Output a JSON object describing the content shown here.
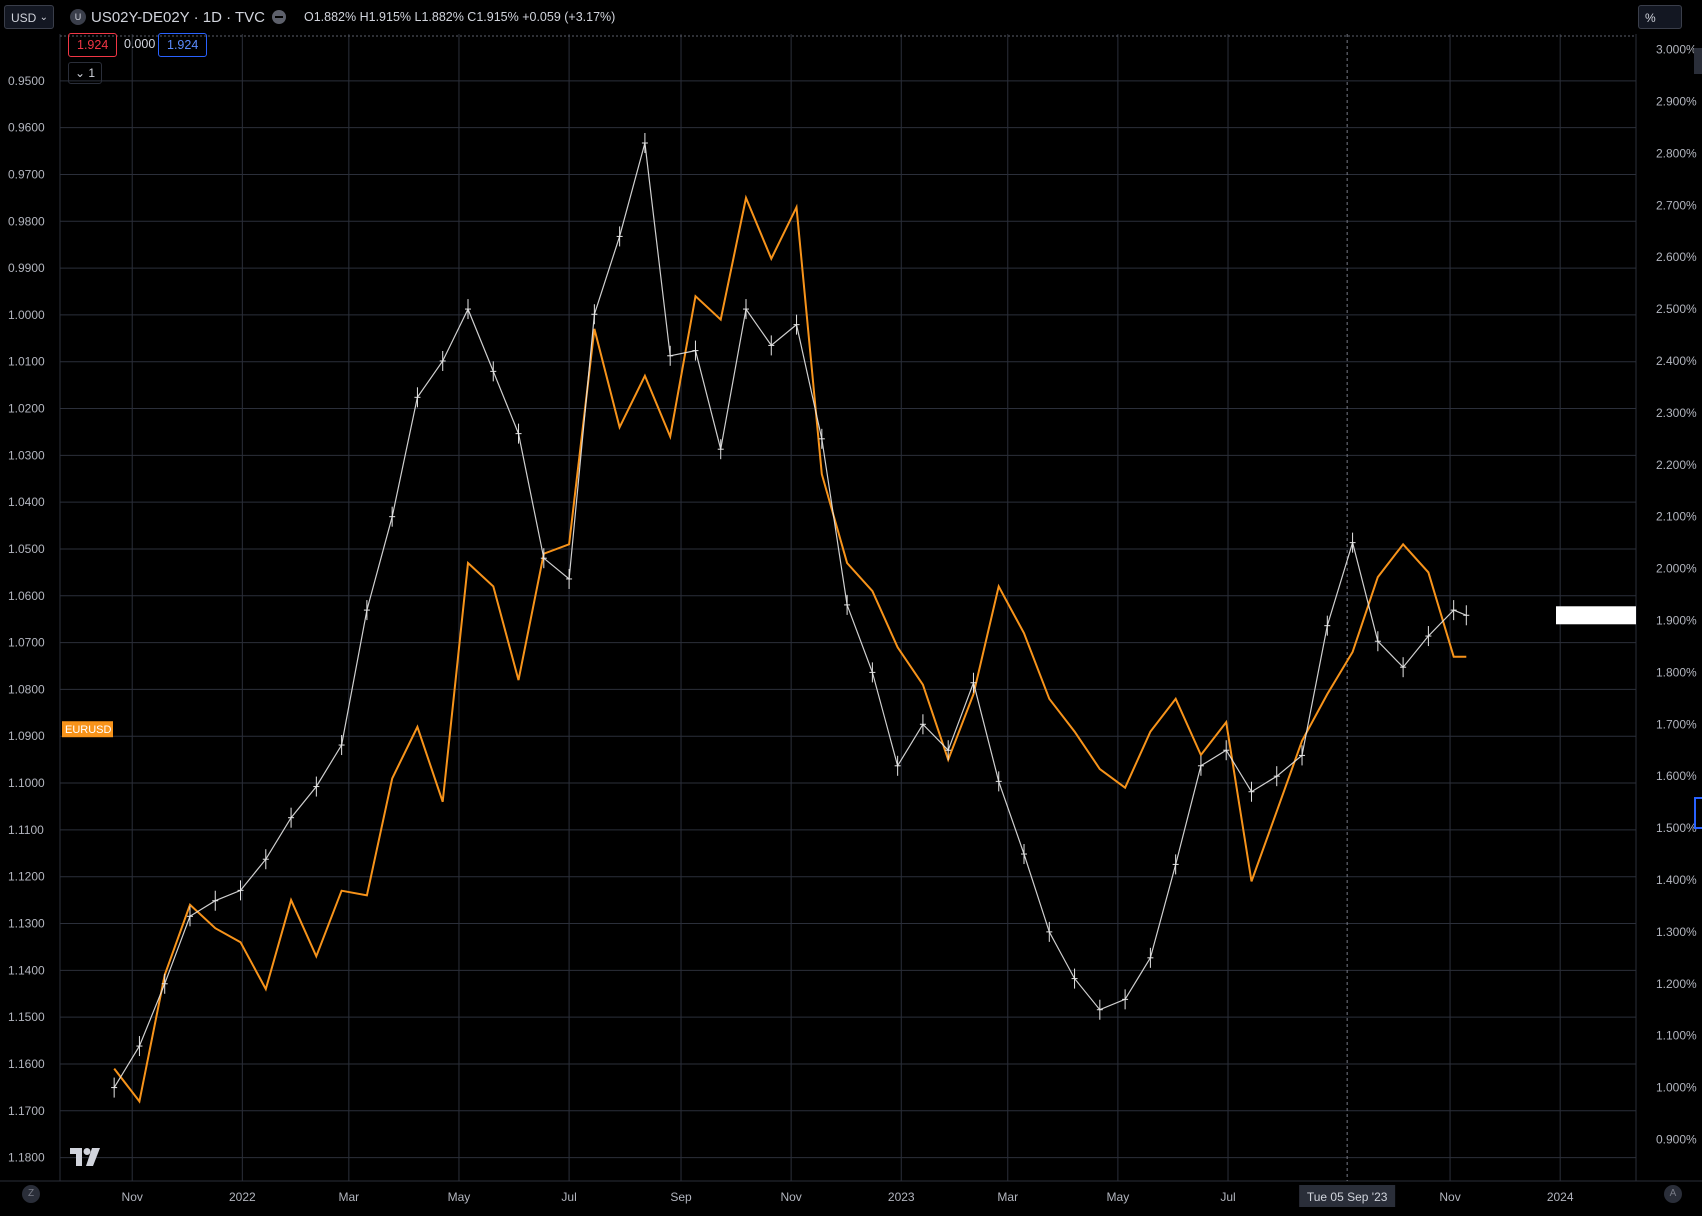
{
  "header": {
    "currency": "USD",
    "scale_unit": "%",
    "symbol_icon": "U",
    "symbol_title": "US02Y-DE02Y · 1D · TVC",
    "ohlc": "O1.882% H1.915% L1.882% C1.915% +0.059 (+3.17%)",
    "value_red": "1.924",
    "value_zero": "0.000",
    "value_blue": "1.924",
    "collapse_label": "1",
    "collapse_icon": "chevron-down-icon"
  },
  "footer": {
    "left_btn": "Z",
    "right_btn": "A",
    "logo": "tradingview-logo"
  },
  "colors": {
    "background": "#000000",
    "grid": "#2b2f3a",
    "eurusd": "#f7931a",
    "spread_bars": "#e6e6e6",
    "crosshair_label_bg": "#2a2e39"
  },
  "chart_data": {
    "type": "line",
    "x_ticks": [
      "Nov",
      "2022",
      "Mar",
      "May",
      "Jul",
      "Sep",
      "Nov",
      "2023",
      "Mar",
      "May",
      "Jul",
      "Tue 05 Sep '23",
      "Nov",
      "2024"
    ],
    "x_range": [
      "2021-10",
      "2024-02"
    ],
    "left_axis": {
      "inverted": true,
      "ticks": [
        "0.9500",
        "0.9600",
        "0.9700",
        "0.9800",
        "0.9900",
        "1.0000",
        "1.0100",
        "1.0200",
        "1.0300",
        "1.0400",
        "1.0500",
        "1.0600",
        "1.0700",
        "1.0800",
        "1.0900",
        "1.1000",
        "1.1100",
        "1.1200",
        "1.1300",
        "1.1400",
        "1.1500",
        "1.1600",
        "1.1700",
        "1.1800"
      ],
      "range": [
        0.94,
        1.185
      ]
    },
    "right_axis": {
      "ticks": [
        "3.000%",
        "2.900%",
        "2.800%",
        "2.700%",
        "2.600%",
        "2.500%",
        "2.400%",
        "2.300%",
        "2.200%",
        "2.100%",
        "2.000%",
        "1.900%",
        "1.800%",
        "1.700%",
        "1.600%",
        "1.500%",
        "1.400%",
        "1.300%",
        "1.200%",
        "1.100%",
        "1.000%",
        "0.900%"
      ],
      "range": [
        0.82,
        3.03
      ]
    },
    "crosshair_date": "Tue 05 Sep '23",
    "series": [
      {
        "name": "EURUSD",
        "axis": "left",
        "style": "line",
        "x": [
          "2021-10-22",
          "2021-11-05",
          "2021-11-19",
          "2021-12-03",
          "2021-12-17",
          "2021-12-31",
          "2022-01-14",
          "2022-01-28",
          "2022-02-11",
          "2022-02-25",
          "2022-03-11",
          "2022-03-25",
          "2022-04-08",
          "2022-04-22",
          "2022-05-06",
          "2022-05-20",
          "2022-06-03",
          "2022-06-17",
          "2022-07-01",
          "2022-07-15",
          "2022-07-29",
          "2022-08-12",
          "2022-08-26",
          "2022-09-09",
          "2022-09-23",
          "2022-10-07",
          "2022-10-21",
          "2022-11-04",
          "2022-11-18",
          "2022-12-02",
          "2022-12-16",
          "2022-12-30",
          "2023-01-13",
          "2023-01-27",
          "2023-02-10",
          "2023-02-24",
          "2023-03-10",
          "2023-03-24",
          "2023-04-07",
          "2023-04-21",
          "2023-05-05",
          "2023-05-19",
          "2023-06-02",
          "2023-06-16",
          "2023-06-30",
          "2023-07-14",
          "2023-07-28",
          "2023-08-11",
          "2023-08-25",
          "2023-09-08",
          "2023-09-22",
          "2023-10-06",
          "2023-10-20",
          "2023-11-03",
          "2023-11-10"
        ],
        "values": [
          1.161,
          1.168,
          1.141,
          1.126,
          1.131,
          1.134,
          1.144,
          1.125,
          1.137,
          1.123,
          1.124,
          1.099,
          1.088,
          1.104,
          1.053,
          1.058,
          1.078,
          1.051,
          1.049,
          1.003,
          1.024,
          1.013,
          1.026,
          0.996,
          1.001,
          0.975,
          0.988,
          0.977,
          1.034,
          1.053,
          1.059,
          1.071,
          1.079,
          1.095,
          1.081,
          1.058,
          1.068,
          1.082,
          1.089,
          1.097,
          1.101,
          1.089,
          1.082,
          1.094,
          1.087,
          1.121,
          1.106,
          1.091,
          1.081,
          1.072,
          1.056,
          1.049,
          1.055,
          1.073,
          1.073
        ]
      },
      {
        "name": "US02Y-DE02Y",
        "axis": "right",
        "style": "bars",
        "x": [
          "2021-10-22",
          "2021-11-05",
          "2021-11-19",
          "2021-12-03",
          "2021-12-17",
          "2021-12-31",
          "2022-01-14",
          "2022-01-28",
          "2022-02-11",
          "2022-02-25",
          "2022-03-11",
          "2022-03-25",
          "2022-04-08",
          "2022-04-22",
          "2022-05-06",
          "2022-05-20",
          "2022-06-03",
          "2022-06-17",
          "2022-07-01",
          "2022-07-15",
          "2022-07-29",
          "2022-08-12",
          "2022-08-26",
          "2022-09-09",
          "2022-09-23",
          "2022-10-07",
          "2022-10-21",
          "2022-11-04",
          "2022-11-18",
          "2022-12-02",
          "2022-12-16",
          "2022-12-30",
          "2023-01-13",
          "2023-01-27",
          "2023-02-10",
          "2023-02-24",
          "2023-03-10",
          "2023-03-24",
          "2023-04-07",
          "2023-04-21",
          "2023-05-05",
          "2023-05-19",
          "2023-06-02",
          "2023-06-16",
          "2023-06-30",
          "2023-07-14",
          "2023-07-28",
          "2023-08-11",
          "2023-08-25",
          "2023-09-08",
          "2023-09-22",
          "2023-10-06",
          "2023-10-20",
          "2023-11-03",
          "2023-11-10"
        ],
        "values": [
          1.0,
          1.08,
          1.2,
          1.33,
          1.36,
          1.38,
          1.44,
          1.52,
          1.58,
          1.66,
          1.92,
          2.1,
          2.33,
          2.4,
          2.5,
          2.38,
          2.26,
          2.02,
          1.98,
          2.49,
          2.64,
          2.82,
          2.41,
          2.42,
          2.23,
          2.5,
          2.43,
          2.47,
          2.25,
          1.93,
          1.8,
          1.62,
          1.7,
          1.65,
          1.78,
          1.59,
          1.45,
          1.3,
          1.21,
          1.15,
          1.17,
          1.25,
          1.43,
          1.62,
          1.65,
          1.57,
          1.6,
          1.64,
          1.89,
          2.05,
          1.86,
          1.81,
          1.87,
          1.92,
          1.91
        ]
      }
    ]
  }
}
